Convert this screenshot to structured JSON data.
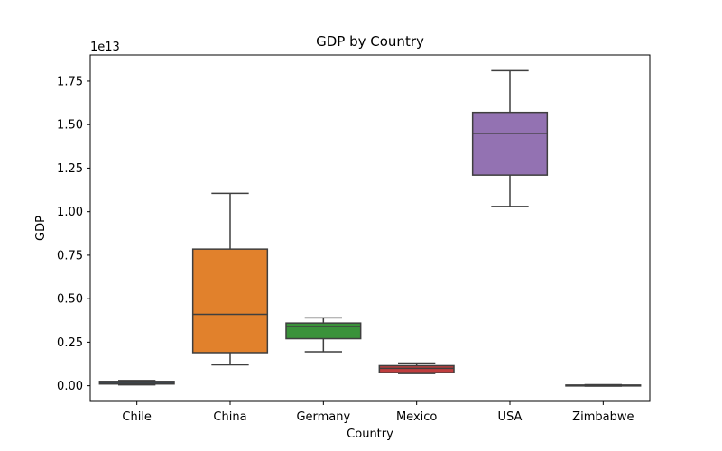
{
  "chart_data": {
    "type": "box",
    "title": "GDP by Country",
    "xlabel": "Country",
    "ylabel": "GDP",
    "y_offset_label": "1e13",
    "ylim": [
      -0.09,
      1.9
    ],
    "y_ticks": [
      0.0,
      0.25,
      0.5,
      0.75,
      1.0,
      1.25,
      1.5,
      1.75
    ],
    "y_tick_labels": [
      "0.00",
      "0.25",
      "0.50",
      "0.75",
      "1.00",
      "1.25",
      "1.50",
      "1.75"
    ],
    "grid": false,
    "categories": [
      "Chile",
      "China",
      "Germany",
      "Mexico",
      "USA",
      "Zimbabwe"
    ],
    "boxes": [
      {
        "category": "Chile",
        "color": "#3274a1",
        "whisker_low": 0.005,
        "q1": 0.01,
        "median": 0.018,
        "q3": 0.025,
        "whisker_high": 0.03
      },
      {
        "category": "China",
        "color": "#e1812c",
        "whisker_low": 0.12,
        "q1": 0.19,
        "median": 0.41,
        "q3": 0.785,
        "whisker_high": 1.105
      },
      {
        "category": "Germany",
        "color": "#3a923a",
        "whisker_low": 0.195,
        "q1": 0.27,
        "median": 0.34,
        "q3": 0.36,
        "whisker_high": 0.39
      },
      {
        "category": "Mexico",
        "color": "#c03d3e",
        "whisker_low": 0.07,
        "q1": 0.075,
        "median": 0.1,
        "q3": 0.115,
        "whisker_high": 0.13
      },
      {
        "category": "USA",
        "color": "#9372b2",
        "whisker_low": 1.03,
        "q1": 1.21,
        "median": 1.45,
        "q3": 1.57,
        "whisker_high": 1.81
      },
      {
        "category": "Zimbabwe",
        "color": "#845b53",
        "whisker_low": -0.002,
        "q1": 0.0,
        "median": 0.002,
        "q3": 0.004,
        "whisker_high": 0.006
      }
    ]
  }
}
